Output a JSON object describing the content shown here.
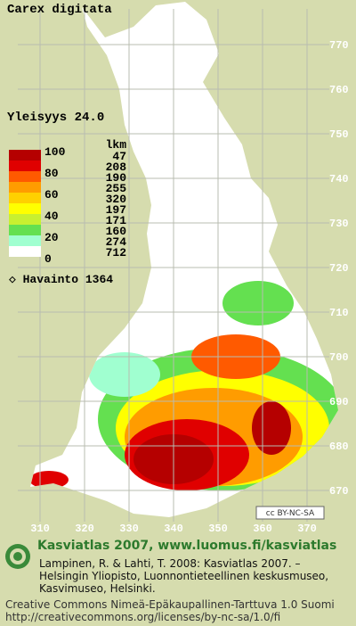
{
  "map": {
    "title": "Carex digitata",
    "frequency": "Yleisyys  24.0",
    "legend": {
      "scale_labels": [
        "100",
        "80",
        "60",
        "40",
        "20",
        "0"
      ],
      "count_header": "lkm",
      "counts": [
        "47",
        "208",
        "190",
        "255",
        "320",
        "197",
        "171",
        "160",
        "274",
        "712"
      ],
      "colors": [
        "#b50000",
        "#e00000",
        "#ff5a00",
        "#ff9c00",
        "#ffd000",
        "#ffff00",
        "#c8f030",
        "#64e050",
        "#a0ffd0",
        "#ffffff"
      ]
    },
    "observations": "◇ Havainto 1364",
    "y_grid_labels": [
      "770",
      "760",
      "750",
      "740",
      "730",
      "720",
      "710",
      "700",
      "690",
      "680",
      "670"
    ],
    "x_grid_labels": [
      "310",
      "320",
      "330",
      "340",
      "350",
      "360",
      "370"
    ],
    "license_badge": "cc BY-NC-SA"
  },
  "footer": {
    "heading": "Kasviatlas 2007, www.luomus.fi/kasviatlas",
    "citation": [
      "Lampinen, R. & Lahti, T. 2008: Kasviatlas 2007. –",
      "Helsingin Yliopisto, Luonnontieteellinen keskusmuseo,",
      "Kasvimuseo, Helsinki."
    ],
    "license": [
      "Creative Commons Nimeä-Epäkaupallinen-Tarttuva 1.0 Suomi",
      "http://creativecommons.org/licenses/by-nc-sa/1.0/fi"
    ]
  }
}
